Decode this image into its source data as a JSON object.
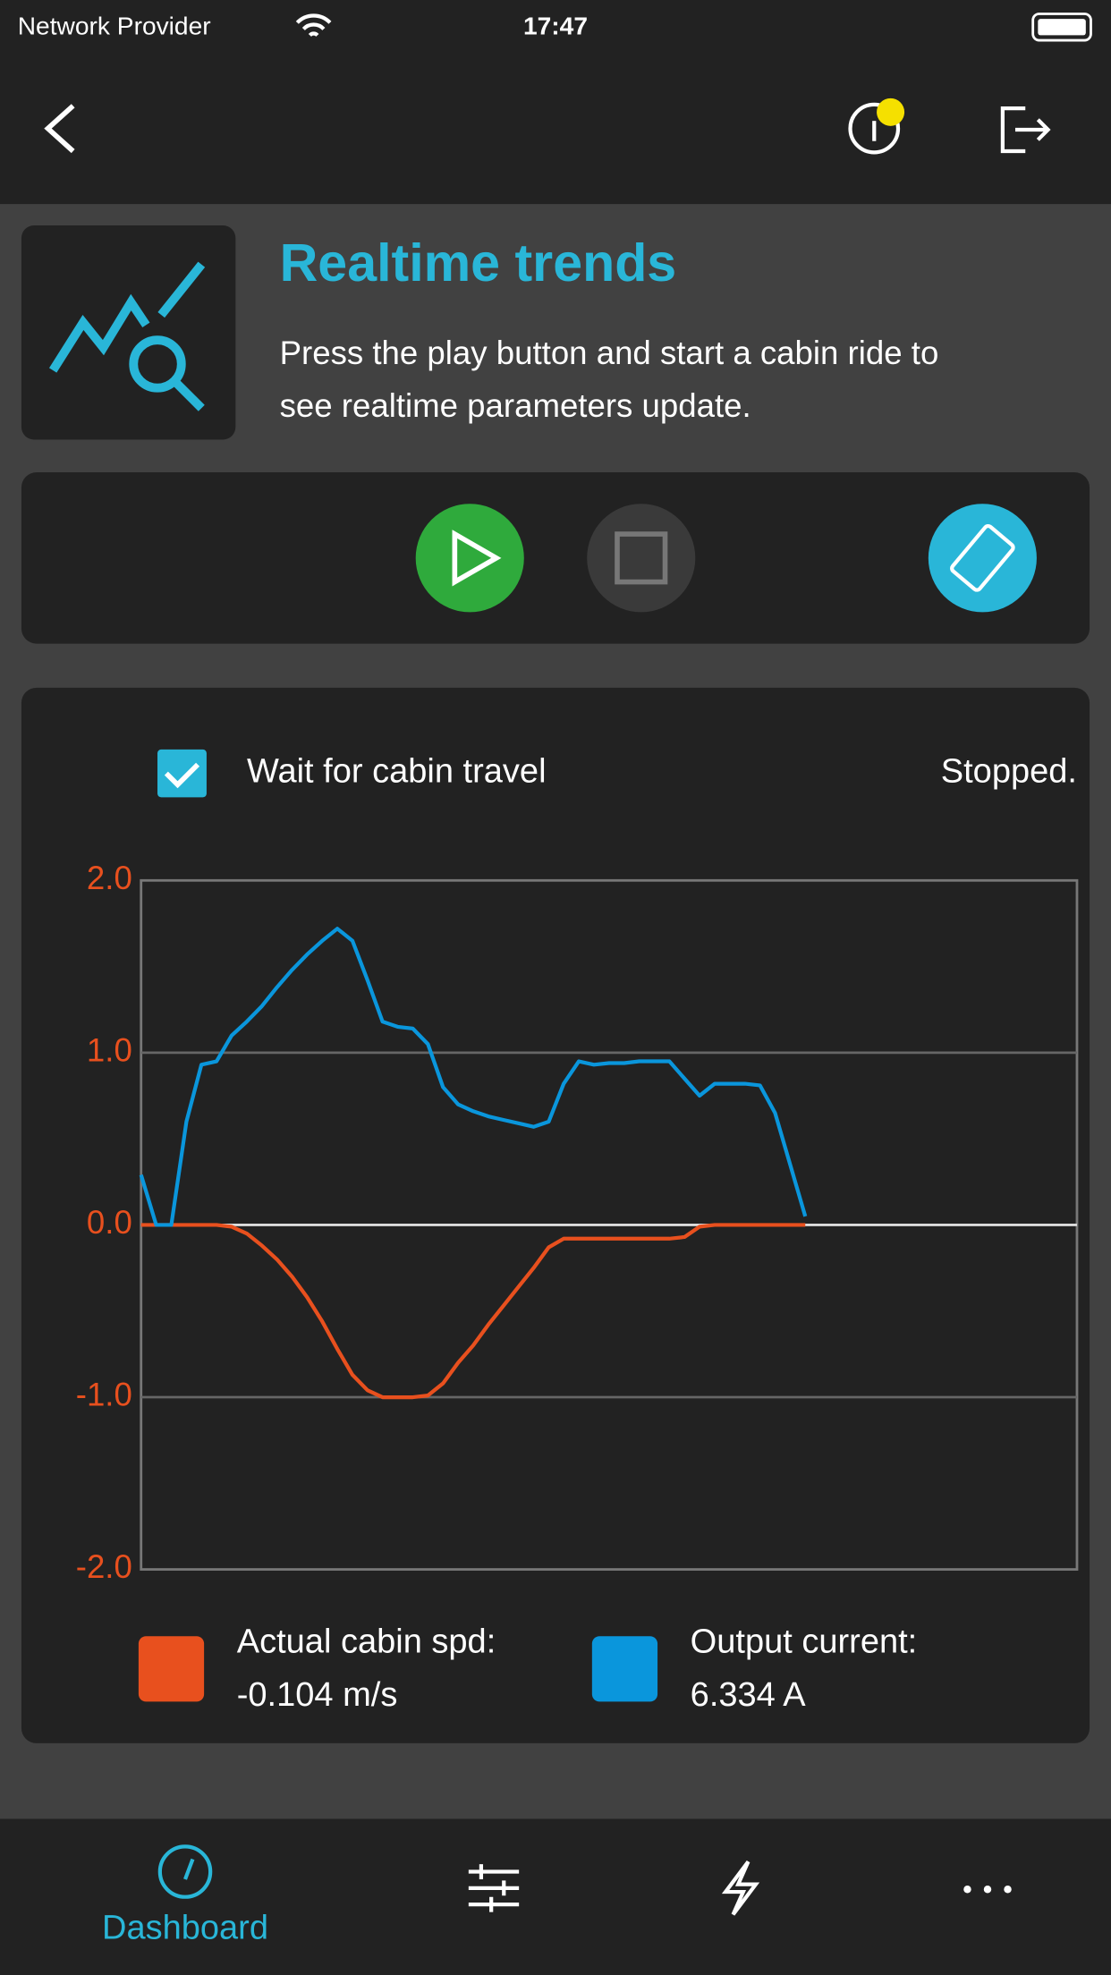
{
  "status_bar": {
    "carrier": "Network Provider",
    "time": "17:47"
  },
  "intro": {
    "title": "Realtime trends",
    "description_lines": [
      "Press the play button and start a cabin ride to",
      "see realtime parameters update."
    ]
  },
  "options": {
    "checkbox_label": "Wait for cabin travel",
    "state": "Stopped."
  },
  "chart_data": {
    "type": "line",
    "ylim": [
      -2,
      2
    ],
    "yticks": [
      {
        "value": -2,
        "label": "-2.0"
      },
      {
        "value": -1,
        "label": "-1.0"
      },
      {
        "value": 0,
        "label": "0.0"
      },
      {
        "value": 1,
        "label": "1.0"
      },
      {
        "value": 2,
        "label": "2.0"
      }
    ],
    "grid": true,
    "series": [
      {
        "name": "Actual cabin spd:",
        "color": "#e8501e",
        "readout": "-0.104 m/s",
        "values": [
          0,
          0,
          0,
          0,
          0,
          0,
          -0.01,
          -0.05,
          -0.12,
          -0.2,
          -0.3,
          -0.42,
          -0.56,
          -0.72,
          -0.87,
          -0.96,
          -1.0,
          -1.0,
          -1.0,
          -0.99,
          -0.92,
          -0.8,
          -0.7,
          -0.58,
          -0.47,
          -0.36,
          -0.25,
          -0.13,
          -0.08,
          -0.08,
          -0.08,
          -0.08,
          -0.08,
          -0.08,
          -0.08,
          -0.08,
          -0.07,
          -0.01,
          0,
          0,
          0,
          0,
          0,
          0,
          0,
          null,
          null,
          null,
          null,
          null,
          null,
          null,
          null,
          null,
          null,
          null,
          null,
          null,
          null,
          null,
          null,
          null,
          null
        ]
      },
      {
        "name": "Output current:",
        "color": "#0a96dc",
        "readout": "6.334 A",
        "values": [
          0.29,
          0,
          0,
          0.6,
          0.93,
          0.95,
          1.1,
          1.18,
          1.27,
          1.38,
          1.48,
          1.57,
          1.65,
          1.72,
          1.65,
          1.42,
          1.18,
          1.15,
          1.14,
          1.05,
          0.8,
          0.7,
          0.66,
          0.63,
          0.61,
          0.59,
          0.57,
          0.6,
          0.82,
          0.95,
          0.93,
          0.94,
          0.94,
          0.95,
          0.95,
          0.95,
          0.85,
          0.75,
          0.82,
          0.82,
          0.82,
          0.81,
          0.65,
          0.35,
          0.05,
          null,
          null,
          null,
          null,
          null,
          null,
          null,
          null,
          null,
          null,
          null,
          null,
          null,
          null,
          null,
          null,
          null,
          null
        ]
      }
    ]
  },
  "tab_bar": {
    "active_tab": "Dashboard"
  }
}
